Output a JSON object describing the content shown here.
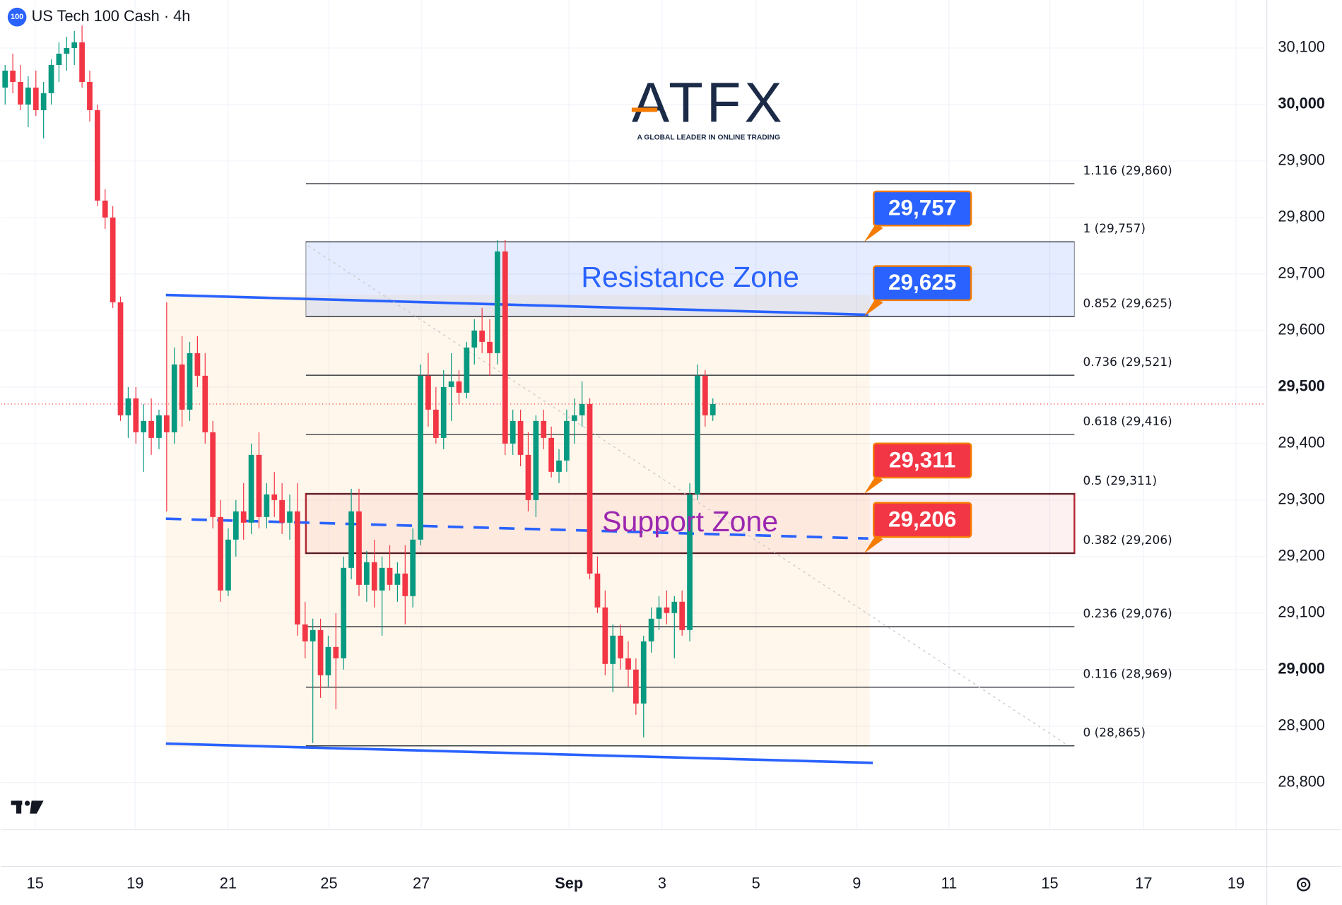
{
  "chart_data": {
    "type": "candlestick",
    "title": "US Tech 100 Cash · 4h",
    "symbol_badge": "100",
    "logo": {
      "name": "ATFX",
      "tagline": "A GLOBAL LEADER IN ONLINE TRADING"
    },
    "up_color": "#089981",
    "down_color": "#f23645",
    "grid": true,
    "xlim": [
      -0.56,
      163.9
    ],
    "ylim": [
      28718,
      30185
    ],
    "yticks": [
      {
        "value": 28800,
        "label": "28,800"
      },
      {
        "value": 28900,
        "label": "28,900"
      },
      {
        "value": 29000,
        "label": "29,000",
        "bold": true
      },
      {
        "value": 29100,
        "label": "29,100"
      },
      {
        "value": 29200,
        "label": "29,200"
      },
      {
        "value": 29300,
        "label": "29,300"
      },
      {
        "value": 29400,
        "label": "29,400"
      },
      {
        "value": 29500,
        "label": "29,500",
        "bold": true
      },
      {
        "value": 29600,
        "label": "29,600"
      },
      {
        "value": 29700,
        "label": "29,700"
      },
      {
        "value": 29800,
        "label": "29,800"
      },
      {
        "value": 29900,
        "label": "29,900"
      },
      {
        "value": 30000,
        "label": "30,000",
        "bold": true
      },
      {
        "value": 30100,
        "label": "30,100"
      }
    ],
    "xticks": [
      {
        "value": 3.9,
        "label": "15"
      },
      {
        "value": 16.9,
        "label": "19"
      },
      {
        "value": 29,
        "label": "21"
      },
      {
        "value": 42.1,
        "label": "25"
      },
      {
        "value": 54.1,
        "label": "27"
      },
      {
        "value": 73.3,
        "label": "Sep",
        "bold": true
      },
      {
        "value": 85.4,
        "label": "3"
      },
      {
        "value": 97.6,
        "label": "5"
      },
      {
        "value": 110.7,
        "label": "9"
      },
      {
        "value": 122.7,
        "label": "11"
      },
      {
        "value": 135.8,
        "label": "15"
      },
      {
        "value": 148,
        "label": "17"
      },
      {
        "value": 160,
        "label": "19"
      }
    ],
    "candles": [
      [
        30030,
        30070,
        30000,
        30060
      ],
      [
        30060,
        30090,
        30020,
        30040
      ],
      [
        30040,
        30070,
        29990,
        30000
      ],
      [
        30000,
        30050,
        29960,
        30030
      ],
      [
        30030,
        30060,
        29980,
        29990
      ],
      [
        29990,
        30040,
        29940,
        30020
      ],
      [
        30020,
        30080,
        30000,
        30070
      ],
      [
        30070,
        30110,
        30040,
        30090
      ],
      [
        30090,
        30120,
        30060,
        30100
      ],
      [
        30100,
        30130,
        30070,
        30110
      ],
      [
        30110,
        30140,
        30030,
        30040
      ],
      [
        30040,
        30060,
        29970,
        29990
      ],
      [
        29990,
        30000,
        29820,
        29830
      ],
      [
        29830,
        29850,
        29780,
        29800
      ],
      [
        29800,
        29820,
        29640,
        29650
      ],
      [
        29650,
        29660,
        29440,
        29450
      ],
      [
        29450,
        29500,
        29410,
        29480
      ],
      [
        29480,
        29500,
        29400,
        29420
      ],
      [
        29420,
        29470,
        29350,
        29440
      ],
      [
        29440,
        29480,
        29380,
        29410
      ],
      [
        29410,
        29460,
        29390,
        29450
      ],
      [
        29450,
        29650,
        29280,
        29420
      ],
      [
        29420,
        29570,
        29400,
        29540
      ],
      [
        29540,
        29590,
        29430,
        29460
      ],
      [
        29460,
        29580,
        29440,
        29560
      ],
      [
        29560,
        29590,
        29500,
        29520
      ],
      [
        29520,
        29560,
        29400,
        29420
      ],
      [
        29420,
        29440,
        29250,
        29270
      ],
      [
        29270,
        29300,
        29120,
        29140
      ],
      [
        29140,
        29250,
        29130,
        29230
      ],
      [
        29230,
        29300,
        29200,
        29280
      ],
      [
        29280,
        29330,
        29230,
        29260
      ],
      [
        29260,
        29400,
        29240,
        29380
      ],
      [
        29380,
        29420,
        29250,
        29270
      ],
      [
        29270,
        29330,
        29250,
        29310
      ],
      [
        29310,
        29350,
        29270,
        29300
      ],
      [
        29300,
        29330,
        29240,
        29260
      ],
      [
        29260,
        29310,
        29230,
        29280
      ],
      [
        29280,
        29330,
        29060,
        29080
      ],
      [
        29080,
        29120,
        29020,
        29050
      ],
      [
        29050,
        29090,
        28870,
        29070
      ],
      [
        29070,
        29090,
        28950,
        28990
      ],
      [
        28990,
        29060,
        28970,
        29040
      ],
      [
        29040,
        29100,
        28930,
        29020
      ],
      [
        29020,
        29200,
        29000,
        29180
      ],
      [
        29180,
        29320,
        29160,
        29280
      ],
      [
        29280,
        29320,
        29130,
        29150
      ],
      [
        29150,
        29210,
        29120,
        29190
      ],
      [
        29190,
        29230,
        29110,
        29140
      ],
      [
        29140,
        29200,
        29060,
        29180
      ],
      [
        29180,
        29220,
        29140,
        29150
      ],
      [
        29150,
        29190,
        29120,
        29170
      ],
      [
        29170,
        29220,
        29080,
        29130
      ],
      [
        29130,
        29250,
        29110,
        29230
      ],
      [
        29230,
        29540,
        29220,
        29520
      ],
      [
        29520,
        29560,
        29430,
        29460
      ],
      [
        29460,
        29500,
        29400,
        29410
      ],
      [
        29410,
        29530,
        29390,
        29500
      ],
      [
        29500,
        29560,
        29440,
        29510
      ],
      [
        29510,
        29530,
        29470,
        29490
      ],
      [
        29490,
        29580,
        29480,
        29570
      ],
      [
        29570,
        29620,
        29540,
        29600
      ],
      [
        29600,
        29640,
        29560,
        29580
      ],
      [
        29580,
        29620,
        29520,
        29560
      ],
      [
        29560,
        29760,
        29540,
        29740
      ],
      [
        29740,
        29760,
        29380,
        29400
      ],
      [
        29400,
        29460,
        29380,
        29440
      ],
      [
        29440,
        29460,
        29360,
        29380
      ],
      [
        29380,
        29420,
        29280,
        29300
      ],
      [
        29300,
        29450,
        29270,
        29440
      ],
      [
        29440,
        29460,
        29390,
        29410
      ],
      [
        29410,
        29430,
        29340,
        29350
      ],
      [
        29350,
        29390,
        29330,
        29370
      ],
      [
        29370,
        29460,
        29350,
        29440
      ],
      [
        29440,
        29480,
        29400,
        29450
      ],
      [
        29450,
        29510,
        29430,
        29470
      ],
      [
        29470,
        29480,
        29160,
        29170
      ],
      [
        29170,
        29200,
        29100,
        29110
      ],
      [
        29110,
        29140,
        28990,
        29010
      ],
      [
        29010,
        29080,
        28960,
        29060
      ],
      [
        29060,
        29080,
        29000,
        29020
      ],
      [
        29020,
        29050,
        28970,
        29000
      ],
      [
        29000,
        29020,
        28920,
        28940
      ],
      [
        28940,
        29060,
        28880,
        29050
      ],
      [
        29050,
        29110,
        29030,
        29090
      ],
      [
        29090,
        29130,
        29070,
        29110
      ],
      [
        29110,
        29140,
        29080,
        29100
      ],
      [
        29100,
        29130,
        29020,
        29120
      ],
      [
        29120,
        29140,
        29060,
        29070
      ],
      [
        29070,
        29330,
        29050,
        29310
      ],
      [
        29310,
        29540,
        29300,
        29520
      ],
      [
        29520,
        29530,
        29430,
        29450
      ],
      [
        29450,
        29480,
        29440,
        29470
      ]
    ],
    "fib_range": [
      39.1,
      139
    ],
    "fib_levels": [
      {
        "value": 29860,
        "label": "1.116 (29,860)"
      },
      {
        "value": 29757,
        "label": "1 (29,757)"
      },
      {
        "value": 29625,
        "label": "0.852 (29,625)"
      },
      {
        "value": 29521,
        "label": "0.736 (29,521)"
      },
      {
        "value": 29416,
        "label": "0.618 (29,416)"
      },
      {
        "value": 29311,
        "label": "0.5 (29,311)"
      },
      {
        "value": 29206,
        "label": "0.382 (29,206)"
      },
      {
        "value": 29076,
        "label": "0.236 (29,076)"
      },
      {
        "value": 28969,
        "label": "0.116 (28,969)"
      },
      {
        "value": 28865,
        "label": "0 (28,865)"
      }
    ],
    "zones": [
      {
        "label": "Resistance Zone",
        "bottom": 29625,
        "top": 29757,
        "color": "#2962ff"
      },
      {
        "label": "Support Zone",
        "bottom": 29206,
        "top": 29311,
        "color": "#9c27b0"
      }
    ],
    "range_box": {
      "x": [
        20.9,
        112.4
      ],
      "y": [
        28862,
        29663
      ]
    },
    "trendlines": [
      {
        "x": [
          20.9,
          112.2
        ],
        "y": [
          29663,
          29628
        ],
        "color": "#2962ff",
        "dashed": false
      },
      {
        "x": [
          20.9,
          112.8
        ],
        "y": [
          28869,
          28835
        ],
        "color": "#2962ff",
        "dashed": false
      },
      {
        "x": [
          20.9,
          112.2
        ],
        "y": [
          29267,
          29232
        ],
        "color": "#2962ff",
        "dashed": true
      },
      {
        "x": [
          39.4,
          137.8
        ],
        "y": [
          29750,
          28869
        ],
        "color": "#c8c8c8",
        "dotted": true
      }
    ],
    "price_tags": [
      {
        "value": 29757,
        "label": "29,757",
        "color": "#2962ff"
      },
      {
        "value": 29625,
        "label": "29,625",
        "color": "#2962ff"
      },
      {
        "value": 29311,
        "label": "29,311",
        "color": "#f23645"
      },
      {
        "value": 29206,
        "label": "29,206",
        "color": "#f23645"
      }
    ]
  }
}
